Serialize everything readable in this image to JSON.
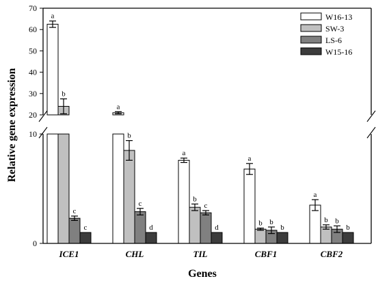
{
  "chart_data": {
    "type": "bar",
    "xlabel": "Genes",
    "ylabel": "Relative gene expression",
    "categories": [
      "ICE1",
      "CHL",
      "TIL",
      "CBF1",
      "CBF2"
    ],
    "y_axis_break": {
      "lower_range": [
        0,
        10
      ],
      "upper_range": [
        20,
        70
      ]
    },
    "y_ticks_lower": [
      0,
      10
    ],
    "y_ticks_upper": [
      20,
      30,
      40,
      50,
      60,
      70
    ],
    "legend_position": "top-right",
    "series": [
      {
        "name": "W16-13",
        "color": "#ffffff",
        "values": [
          62.5,
          21.0,
          7.6,
          6.8,
          3.5
        ],
        "errors": [
          1.5,
          0.5,
          0.2,
          0.5,
          0.5
        ],
        "labels": [
          "a",
          "a",
          "a",
          "a",
          "a"
        ]
      },
      {
        "name": "SW-3",
        "color": "#c0c0c0",
        "values": [
          24.0,
          8.5,
          3.3,
          1.3,
          1.5
        ],
        "errors": [
          3.5,
          0.9,
          0.3,
          0.1,
          0.2
        ],
        "labels": [
          "b",
          "b",
          "b",
          "b",
          "b"
        ]
      },
      {
        "name": "LS-6",
        "color": "#808080",
        "values": [
          2.3,
          2.9,
          2.8,
          1.2,
          1.3
        ],
        "errors": [
          0.2,
          0.3,
          0.2,
          0.3,
          0.3
        ],
        "labels": [
          "c",
          "c",
          "c",
          "b",
          "b"
        ]
      },
      {
        "name": "W15-16",
        "color": "#3c3c3c",
        "values": [
          1.0,
          1.0,
          1.0,
          1.0,
          1.0
        ],
        "errors": [
          0,
          0,
          0,
          0,
          0
        ],
        "labels": [
          "c",
          "d",
          "d",
          "b",
          "b"
        ]
      }
    ]
  }
}
